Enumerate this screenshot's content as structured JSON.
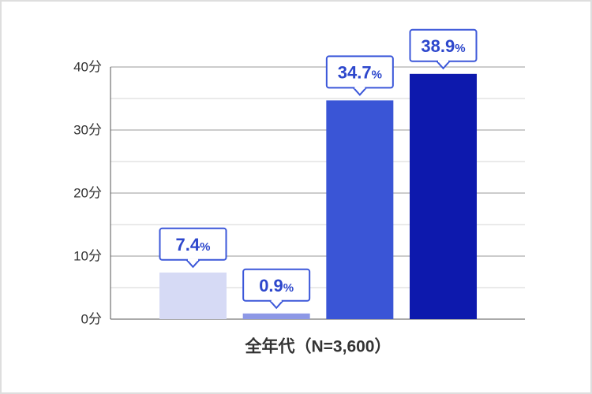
{
  "chart_data": {
    "type": "bar",
    "categories": [
      "全年代（N=3,600）"
    ],
    "series": [
      {
        "values": [
          7.4
        ],
        "color": "#d6daf5"
      },
      {
        "values": [
          0.9
        ],
        "color": "#8d98e6"
      },
      {
        "values": [
          34.7
        ],
        "color": "#3a55d6"
      },
      {
        "values": [
          38.9
        ],
        "color": "#0d19ad"
      }
    ],
    "data_label_suffix": "%",
    "ylim": [
      0,
      40
    ],
    "yticks": [
      0,
      10,
      20,
      30,
      40
    ],
    "ytick_labels": [
      "0分",
      "10分",
      "20分",
      "30分",
      "40分"
    ],
    "grid": true,
    "legend": false
  },
  "colors": {
    "frame_border": "#dedede",
    "label_border": "#3b57d9",
    "label_text": "#2d47cc",
    "major_grid": "#9a9a9a",
    "minor_grid": "#d4d4d4",
    "axis": "#555555"
  }
}
